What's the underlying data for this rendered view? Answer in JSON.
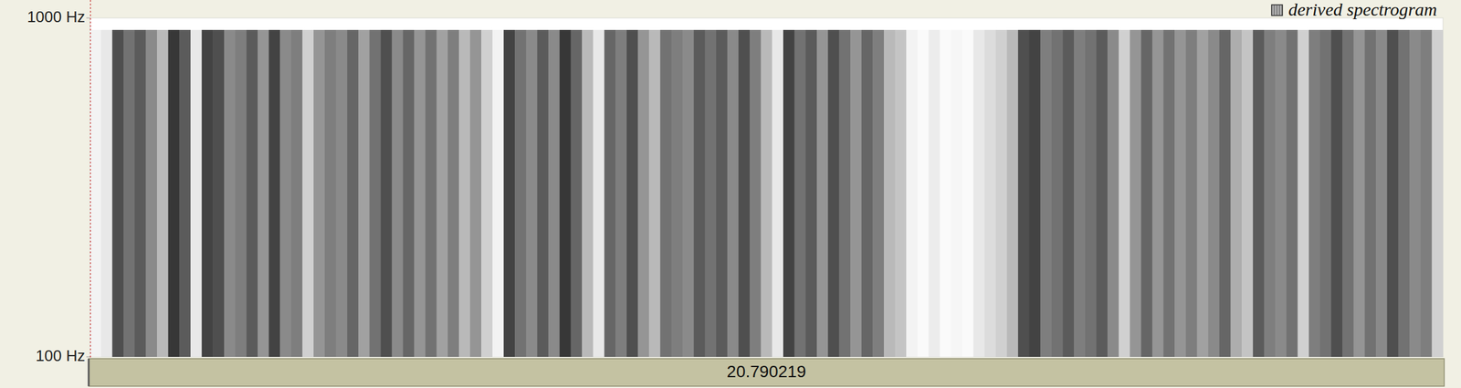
{
  "chart_data": {
    "type": "spectrogram",
    "title": "derived spectrogram",
    "log": "y",
    "ylim": [
      100,
      1000
    ],
    "yticks": [
      {
        "value": 100,
        "label": "100 Hz"
      },
      {
        "value": 1000,
        "label": "1000 Hz"
      }
    ],
    "xlim": [
      0,
      20.790219
    ],
    "intensity": [
      0.05,
      0.1,
      0.75,
      0.6,
      0.7,
      0.5,
      0.3,
      0.85,
      0.7,
      0.1,
      0.8,
      0.75,
      0.5,
      0.55,
      0.7,
      0.45,
      0.8,
      0.5,
      0.55,
      0.2,
      0.45,
      0.55,
      0.5,
      0.65,
      0.4,
      0.6,
      0.75,
      0.5,
      0.65,
      0.45,
      0.6,
      0.4,
      0.55,
      0.3,
      0.45,
      0.2,
      0.05,
      0.8,
      0.6,
      0.5,
      0.7,
      0.5,
      0.85,
      0.65,
      0.3,
      0.1,
      0.65,
      0.55,
      0.75,
      0.45,
      0.3,
      0.6,
      0.55,
      0.5,
      0.7,
      0.6,
      0.7,
      0.5,
      0.75,
      0.55,
      0.3,
      0.1,
      0.8,
      0.6,
      0.7,
      0.45,
      0.75,
      0.6,
      0.45,
      0.65,
      0.55,
      0.3,
      0.25,
      0.05,
      0.02,
      0.08,
      0.02,
      0.04,
      0.02,
      0.1,
      0.15,
      0.2,
      0.3,
      0.75,
      0.8,
      0.55,
      0.6,
      0.7,
      0.55,
      0.6,
      0.7,
      0.5,
      0.2,
      0.45,
      0.65,
      0.45,
      0.6,
      0.45,
      0.55,
      0.4,
      0.5,
      0.65,
      0.35,
      0.25,
      0.7,
      0.55,
      0.5,
      0.6,
      0.2,
      0.55,
      0.6,
      0.75,
      0.6,
      0.45,
      0.6,
      0.5,
      0.75,
      0.6,
      0.5,
      0.55,
      0.2
    ]
  }
}
